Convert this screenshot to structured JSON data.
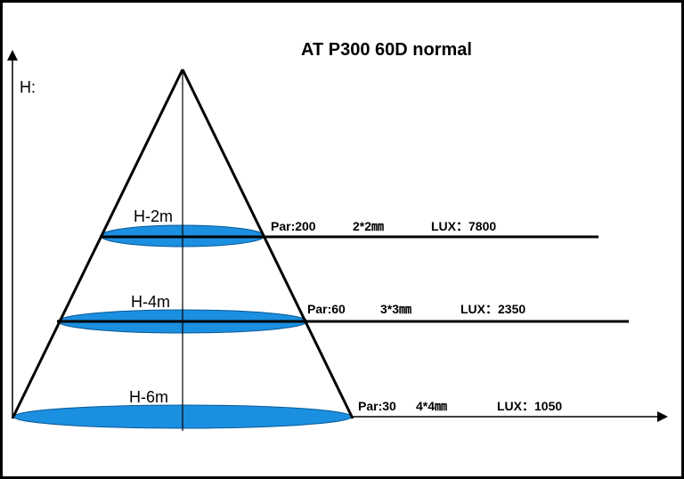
{
  "title": "AT P300 60D normal",
  "y_axis_label": "H:",
  "colors": {
    "disc": "#1b8fe0",
    "line": "#000000",
    "border": "#000000"
  },
  "levels": [
    {
      "height_label": "H-2m",
      "par": "Par:200",
      "area": "2*2㎜",
      "lux": "LUX：7800"
    },
    {
      "height_label": "H-4m",
      "par": "Par:60",
      "area": "3*3㎜",
      "lux": "LUX：2350"
    },
    {
      "height_label": "H-6m",
      "par": "Par:30",
      "area": "4*4㎜",
      "lux": "LUX：1050"
    }
  ]
}
